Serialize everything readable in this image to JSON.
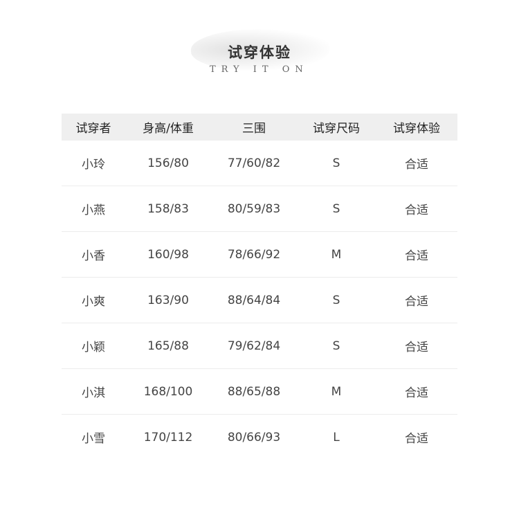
{
  "header": {
    "title": "试穿体验",
    "subtitle": "TRY IT ON"
  },
  "table": {
    "columns": [
      "试穿者",
      "身高/体重",
      "三围",
      "试穿尺码",
      "试穿体验"
    ],
    "rows": [
      [
        "小玲",
        "156/80",
        "77/60/82",
        "S",
        "合适"
      ],
      [
        "小燕",
        "158/83",
        "80/59/83",
        "S",
        "合适"
      ],
      [
        "小香",
        "160/98",
        "78/66/92",
        "M",
        "合适"
      ],
      [
        "小爽",
        "163/90",
        "88/64/84",
        "S",
        "合适"
      ],
      [
        "小颖",
        "165/88",
        "79/62/84",
        "S",
        "合适"
      ],
      [
        "小淇",
        "168/100",
        "88/65/88",
        "M",
        "合适"
      ],
      [
        "小雪",
        "170/112",
        "80/66/93",
        "L",
        "合适"
      ]
    ]
  }
}
